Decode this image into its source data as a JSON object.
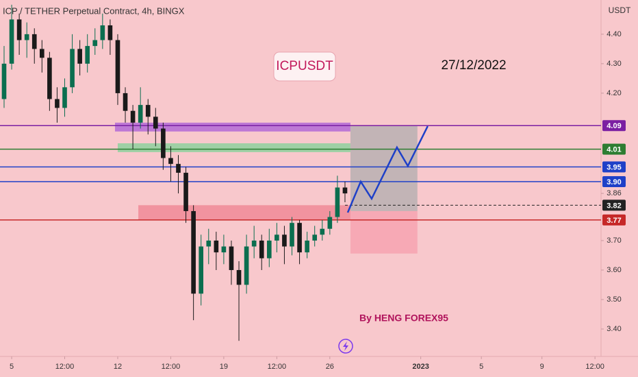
{
  "chart_data": {
    "type": "candlestick",
    "title": "ICP / TETHER Perpetual Contract, 4h, BINGX",
    "currency": "USDT",
    "label_box": "ICPUSDT",
    "date_note": "27/12/2022",
    "author": "By HENG FOREX95",
    "xlim": [
      -0.77,
      38.9
    ],
    "ylim": [
      3.307,
      4.516
    ],
    "xticks": [
      {
        "value": 0,
        "label": "5"
      },
      {
        "value": 3.5,
        "label": "12:00"
      },
      {
        "value": 7,
        "label": "12"
      },
      {
        "value": 10.5,
        "label": "12:00"
      },
      {
        "value": 14,
        "label": "19"
      },
      {
        "value": 17.5,
        "label": "12:00"
      },
      {
        "value": 21,
        "label": "26"
      },
      {
        "value": 27,
        "label": "2023"
      },
      {
        "value": 31,
        "label": "5"
      },
      {
        "value": 35,
        "label": "9"
      },
      {
        "value": 38.5,
        "label": "12:00"
      }
    ],
    "yticks": [
      {
        "value": 3.4,
        "label": "3.40"
      },
      {
        "value": 3.5,
        "label": "3.50"
      },
      {
        "value": 3.6,
        "label": "3.60"
      },
      {
        "value": 3.7,
        "label": "3.70"
      },
      3.86,
      {
        "value": 4.2,
        "label": "4.20"
      },
      {
        "value": 4.3,
        "label": "4.30"
      },
      {
        "value": 4.4,
        "label": "4.40"
      }
    ],
    "grid": false,
    "up_color": "#0b6e4f",
    "down_color": "#1a1a1a",
    "candles": [
      [
        -0.5,
        4.18,
        4.36,
        4.15,
        4.3
      ],
      [
        0,
        4.3,
        4.5,
        4.28,
        4.45
      ],
      [
        0.5,
        4.45,
        4.47,
        4.33,
        4.38
      ],
      [
        1,
        4.38,
        4.44,
        4.32,
        4.4
      ],
      [
        1.5,
        4.4,
        4.42,
        4.3,
        4.35
      ],
      [
        2,
        4.35,
        4.38,
        4.27,
        4.32
      ],
      [
        2.5,
        4.32,
        4.34,
        4.14,
        4.18
      ],
      [
        3,
        4.18,
        4.22,
        4.1,
        4.15
      ],
      [
        3.5,
        4.15,
        4.25,
        4.12,
        4.22
      ],
      [
        4,
        4.22,
        4.4,
        4.2,
        4.35
      ],
      [
        4.5,
        4.35,
        4.38,
        4.26,
        4.3
      ],
      [
        5,
        4.3,
        4.4,
        4.27,
        4.36
      ],
      [
        5.5,
        4.36,
        4.42,
        4.33,
        4.38
      ],
      [
        6,
        4.38,
        4.47,
        4.35,
        4.43
      ],
      [
        6.5,
        4.43,
        4.45,
        4.33,
        4.38
      ],
      [
        7,
        4.38,
        4.4,
        4.16,
        4.2
      ],
      [
        7.5,
        4.2,
        4.22,
        4.1,
        4.14
      ],
      [
        8,
        4.14,
        4.16,
        4.01,
        4.1
      ],
      [
        8.5,
        4.1,
        4.22,
        4.08,
        4.16
      ],
      [
        9,
        4.16,
        4.18,
        4.06,
        4.12
      ],
      [
        9.5,
        4.12,
        4.15,
        4.02,
        4.08
      ],
      [
        10,
        4.08,
        4.1,
        3.94,
        3.98
      ],
      [
        10.5,
        3.98,
        4.02,
        3.9,
        3.96
      ],
      [
        11,
        3.96,
        3.99,
        3.86,
        3.93
      ],
      [
        11.5,
        3.93,
        3.95,
        3.76,
        3.8
      ],
      [
        12,
        3.8,
        3.82,
        3.43,
        3.52
      ],
      [
        12.5,
        3.52,
        3.72,
        3.48,
        3.68
      ],
      [
        13,
        3.68,
        3.74,
        3.62,
        3.7
      ],
      [
        13.5,
        3.7,
        3.73,
        3.6,
        3.66
      ],
      [
        14,
        3.66,
        3.72,
        3.62,
        3.68
      ],
      [
        14.5,
        3.68,
        3.7,
        3.55,
        3.6
      ],
      [
        15,
        3.6,
        3.63,
        3.36,
        3.55
      ],
      [
        15.5,
        3.55,
        3.72,
        3.52,
        3.68
      ],
      [
        16,
        3.68,
        3.75,
        3.64,
        3.7
      ],
      [
        16.5,
        3.7,
        3.72,
        3.6,
        3.64
      ],
      [
        17,
        3.64,
        3.74,
        3.61,
        3.7
      ],
      [
        17.5,
        3.7,
        3.76,
        3.66,
        3.72
      ],
      [
        18,
        3.72,
        3.75,
        3.62,
        3.68
      ],
      [
        18.5,
        3.68,
        3.78,
        3.65,
        3.76
      ],
      [
        19,
        3.76,
        3.77,
        3.62,
        3.66
      ],
      [
        19.5,
        3.66,
        3.73,
        3.64,
        3.7
      ],
      [
        20,
        3.7,
        3.75,
        3.68,
        3.72
      ],
      [
        20.5,
        3.72,
        3.77,
        3.7,
        3.74
      ],
      [
        21,
        3.74,
        3.8,
        3.72,
        3.78
      ],
      [
        21.5,
        3.78,
        3.92,
        3.76,
        3.88
      ],
      [
        22,
        3.88,
        3.9,
        3.83,
        3.86
      ]
    ],
    "levels": [
      {
        "value": 4.09,
        "label": "4.09",
        "color": "#7b1fa2"
      },
      {
        "value": 4.01,
        "label": "4.01",
        "color": "#2e7d32"
      },
      {
        "value": 3.95,
        "label": "3.95",
        "color": "#1e40c8"
      },
      {
        "value": 3.9,
        "label": "3.90",
        "color": "#1e40c8"
      },
      {
        "value": 3.82,
        "label": "3.82",
        "color": "#222222",
        "dashed": true
      },
      {
        "value": 3.77,
        "label": "3.77",
        "color": "#c62828"
      }
    ],
    "zones": [
      {
        "x": [
          6.82,
          22.36
        ],
        "y": [
          4.1,
          4.07
        ],
        "color": "#b36ad6"
      },
      {
        "x": [
          7.0,
          22.36
        ],
        "y": [
          4.03,
          4.0
        ],
        "color": "#8fd19e"
      },
      {
        "x": [
          8.36,
          22.36
        ],
        "y": [
          3.82,
          3.77
        ],
        "color": "#f08a96"
      },
      {
        "x": [
          22.36,
          26.78
        ],
        "y": [
          4.09,
          3.8
        ],
        "color": "#b9b0b2"
      },
      {
        "x": [
          22.36,
          26.78
        ],
        "y": [
          3.8,
          3.656
        ],
        "color": "#f7a3b0"
      }
    ],
    "projection": {
      "x": [
        22.18,
        23.04,
        23.76,
        25.43,
        26.15,
        27.46
      ],
      "y": [
        3.795,
        3.9,
        3.842,
        4.016,
        3.953,
        4.088
      ],
      "color": "#1e40c8"
    }
  }
}
